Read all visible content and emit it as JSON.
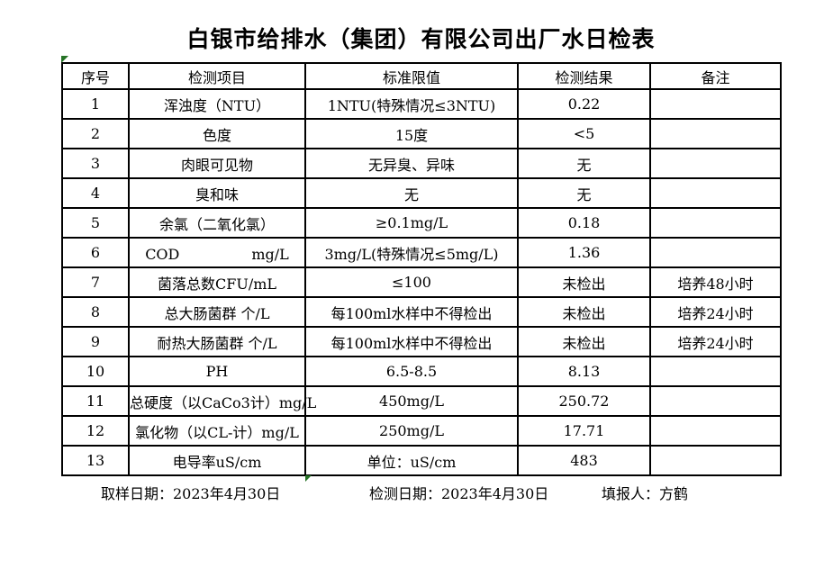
{
  "title": "白银市给排水（集团）有限公司出厂水日检表",
  "table": {
    "headers": [
      "序号",
      "检测项目",
      "标准限值",
      "检测结果",
      "备注"
    ],
    "rows": [
      [
        "1",
        "浑浊度（NTU）",
        "1NTU(特殊情况≤3NTU)",
        "0.22",
        ""
      ],
      [
        "2",
        "色度",
        "15度",
        "<5",
        ""
      ],
      [
        "3",
        "肉眼可见物",
        "无异臭、异味",
        "无",
        ""
      ],
      [
        "4",
        "臭和味",
        "无",
        "无",
        ""
      ],
      [
        "5",
        "余氯（二氧化氯）",
        "≥0.1mg/L",
        "0.18",
        ""
      ],
      [
        "6",
        "COD　　　　　mg/L",
        "3mg/L(特殊情况≤5mg/L)",
        "1.36",
        ""
      ],
      [
        "7",
        "菌落总数CFU/mL",
        "≤100",
        "未检出",
        "培养48小时"
      ],
      [
        "8",
        "总大肠菌群 个/L",
        "每100ml水样中不得检出",
        "未检出",
        "培养24小时"
      ],
      [
        "9",
        "耐热大肠菌群 个/L",
        "每100ml水样中不得检出",
        "未检出",
        "培养24小时"
      ],
      [
        "10",
        "PH",
        "6.5-8.5",
        "8.13",
        ""
      ],
      [
        "11",
        "总硬度（以CaCo3计）mg/L",
        "450mg/L",
        "250.72",
        ""
      ],
      [
        "12",
        "氯化物（以CL-计）mg/L",
        "250mg/L",
        "17.71",
        ""
      ],
      [
        "13",
        "电导率uS/cm",
        "单位：uS/cm",
        "483",
        ""
      ]
    ]
  },
  "footer": {
    "sampling_date": "取样日期：2023年4月30日",
    "test_date": "检测日期：2023年4月30日",
    "reporter": "填报人：方鹤"
  },
  "icons": {
    "flag_top_left": "excel-smart-tag-triangle",
    "flag_bottom": "excel-smart-tag-triangle"
  },
  "colors": {
    "flag_green": "#267326",
    "grid_line": "#000000",
    "background": "#ffffff",
    "text": "#000000"
  }
}
